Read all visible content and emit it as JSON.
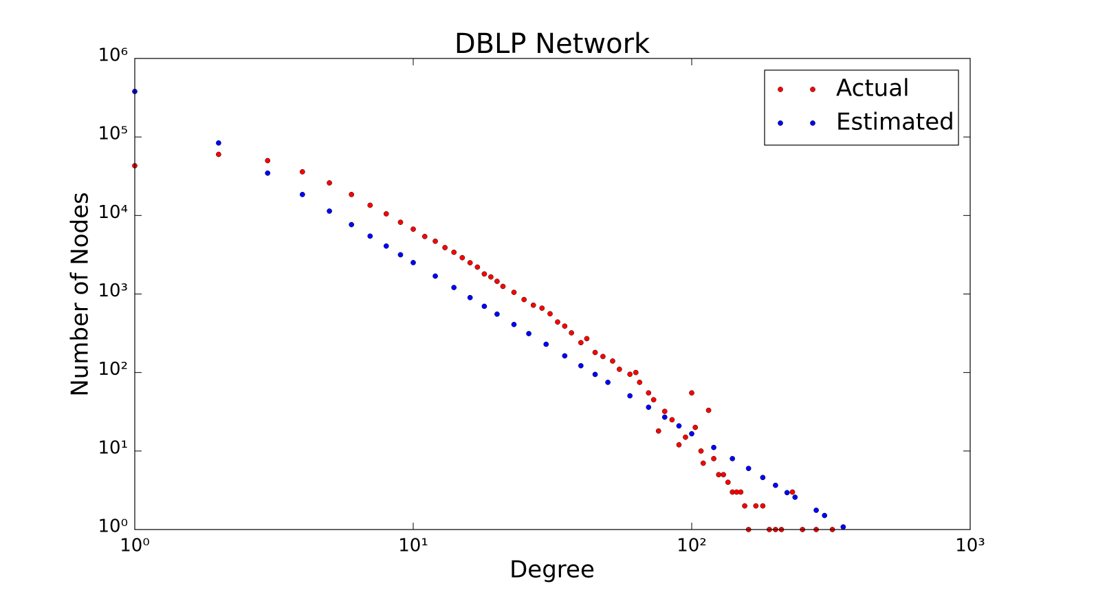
{
  "chart_data": {
    "type": "scatter",
    "title": "DBLP Network",
    "x_label": "Degree",
    "y_label": "Number of Nodes",
    "log_x": true,
    "log_y": true,
    "xlim": [
      1,
      1000
    ],
    "ylim": [
      1,
      1000000
    ],
    "xticks": [
      {
        "value": 1,
        "label": "10⁰"
      },
      {
        "value": 10,
        "label": "10¹"
      },
      {
        "value": 100,
        "label": "10²"
      },
      {
        "value": 1000,
        "label": "10³"
      }
    ],
    "yticks": [
      {
        "value": 1,
        "label": "10⁰"
      },
      {
        "value": 10,
        "label": "10¹"
      },
      {
        "value": 100,
        "label": "10²"
      },
      {
        "value": 1000,
        "label": "10³"
      },
      {
        "value": 10000,
        "label": "10⁴"
      },
      {
        "value": 100000,
        "label": "10⁵"
      },
      {
        "value": 1000000,
        "label": "10⁶"
      }
    ],
    "legend_position": "upper right",
    "series": [
      {
        "name": "Actual",
        "color": "#ff0000",
        "x": [
          1,
          2,
          3,
          4,
          5,
          6,
          7,
          8,
          9,
          10,
          11,
          12,
          13,
          14,
          15,
          16,
          17,
          18,
          19,
          20,
          21,
          23,
          25,
          27,
          29,
          31,
          33,
          35,
          37,
          40,
          42,
          45,
          48,
          52,
          55,
          60,
          63,
          65,
          70,
          73,
          76,
          80,
          85,
          90,
          95,
          100,
          103,
          108,
          110,
          115,
          120,
          125,
          130,
          135,
          140,
          145,
          150,
          155,
          160,
          170,
          180,
          190,
          200,
          210,
          230,
          250,
          280,
          320
        ],
        "values": [
          43000,
          60000,
          50000,
          36000,
          26000,
          18500,
          13500,
          10500,
          8200,
          6700,
          5400,
          4700,
          3900,
          3400,
          2900,
          2500,
          2200,
          1800,
          1650,
          1450,
          1250,
          1050,
          850,
          720,
          660,
          560,
          440,
          390,
          320,
          240,
          270,
          180,
          160,
          140,
          110,
          95,
          100,
          75,
          55,
          45,
          18,
          32,
          25,
          12,
          15,
          55,
          20,
          10,
          7,
          33,
          8,
          5,
          5,
          4,
          3,
          3,
          3,
          2,
          1,
          2,
          2,
          1,
          1,
          1,
          3,
          1,
          1,
          1
        ]
      },
      {
        "name": "Estimated",
        "color": "#0000ff",
        "x": [
          1,
          2,
          3,
          4,
          5,
          6,
          7,
          8,
          9,
          10,
          12,
          14,
          16,
          18,
          20,
          23,
          26,
          30,
          35,
          40,
          45,
          50,
          60,
          70,
          80,
          90,
          100,
          120,
          140,
          160,
          180,
          200,
          220,
          235,
          280,
          300,
          350
        ],
        "values": [
          380000,
          83900,
          34650,
          18500,
          11370,
          7650,
          5460,
          4080,
          3160,
          2510,
          1690,
          1210,
          900,
          697,
          554,
          409,
          313,
          229,
          163,
          122,
          94.6,
          75,
          50.5,
          36.1,
          27,
          20.9,
          16.6,
          11.1,
          8,
          6,
          4.6,
          3.66,
          2.95,
          2.58,
          1.76,
          1.51,
          1.08
        ]
      }
    ]
  }
}
